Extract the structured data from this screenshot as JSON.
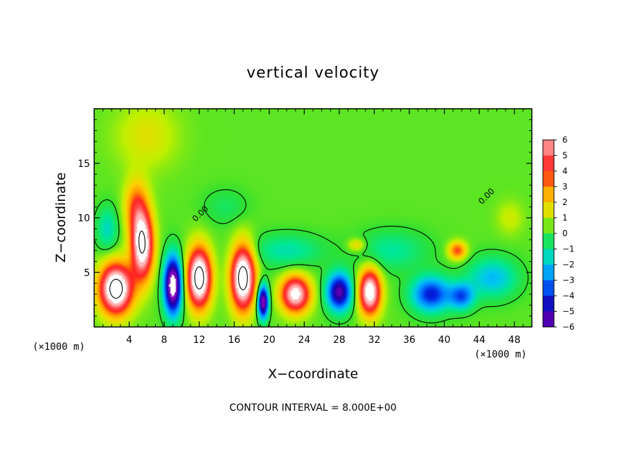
{
  "chart_data": {
    "type": "heatmap",
    "title": "vertical velocity",
    "xlabel": "X−coordinate",
    "ylabel": "Z−coordinate",
    "x_unit_left": "(×1000 m)",
    "x_unit_right": "(×1000 m)",
    "xlim": [
      0,
      50
    ],
    "ylim": [
      0,
      20
    ],
    "xticks": [
      4,
      8,
      12,
      16,
      20,
      24,
      28,
      32,
      36,
      40,
      44,
      48
    ],
    "yticks": [
      5,
      10,
      15
    ],
    "colorbar": {
      "levels": [
        6,
        5,
        4,
        3,
        2,
        1,
        0,
        -1,
        -2,
        -3,
        -4,
        -5,
        -6
      ],
      "labels": [
        "6",
        "5",
        "4",
        "3",
        "2",
        "1",
        "0",
        "−1",
        "−2",
        "−3",
        "−4",
        "−5",
        "−6"
      ]
    },
    "contour_labels": [
      {
        "text": "0.00",
        "x": 11.6,
        "y": 9.6,
        "angle": -45
      },
      {
        "text": "0.00",
        "x": 44.3,
        "y": 11.2,
        "angle": -45
      }
    ],
    "contour_interval_text": "CONTOUR INTERVAL = 8.000E+00",
    "features": [
      {
        "x": 2.5,
        "z": 3.5,
        "sx": 1.8,
        "sz": 2.2,
        "v": 9
      },
      {
        "x": 5.5,
        "z": 7.5,
        "sx": 1.2,
        "sz": 3.0,
        "v": 8
      },
      {
        "x": 4.8,
        "z": 11.0,
        "sx": 1.3,
        "sz": 2.5,
        "v": 3
      },
      {
        "x": 9.0,
        "z": 3.8,
        "sx": 1.0,
        "sz": 2.6,
        "v": -8
      },
      {
        "x": 12.0,
        "z": 4.5,
        "sx": 1.3,
        "sz": 2.6,
        "v": 9
      },
      {
        "x": 17.0,
        "z": 4.5,
        "sx": 1.3,
        "sz": 2.8,
        "v": 9
      },
      {
        "x": 19.3,
        "z": 2.3,
        "sx": 0.6,
        "sz": 1.5,
        "v": -7
      },
      {
        "x": 23.0,
        "z": 3.0,
        "sx": 1.6,
        "sz": 1.6,
        "v": 7
      },
      {
        "x": 28.0,
        "z": 3.2,
        "sx": 1.4,
        "sz": 1.7,
        "v": -6
      },
      {
        "x": 31.5,
        "z": 3.2,
        "sx": 1.2,
        "sz": 2.0,
        "v": 7.5
      },
      {
        "x": 38.5,
        "z": 3.0,
        "sx": 2.2,
        "sz": 1.6,
        "v": -4.5
      },
      {
        "x": 42.0,
        "z": 2.8,
        "sx": 1.4,
        "sz": 1.2,
        "v": -3.5
      },
      {
        "x": 41.5,
        "z": 7.0,
        "sx": 1.0,
        "sz": 0.8,
        "v": 3.5
      },
      {
        "x": 45.5,
        "z": 4.5,
        "sx": 2.8,
        "sz": 1.8,
        "v": -2.5
      },
      {
        "x": 30.0,
        "z": 7.5,
        "sx": 1.0,
        "sz": 0.6,
        "v": 1.8
      },
      {
        "x": 22.0,
        "z": 7.0,
        "sx": 4.0,
        "sz": 1.5,
        "v": -1.6
      },
      {
        "x": 34.0,
        "z": 7.0,
        "sx": 4.0,
        "sz": 1.8,
        "v": -1.4
      },
      {
        "x": 6.0,
        "z": 17.5,
        "sx": 3.5,
        "sz": 3.0,
        "v": 1.2
      },
      {
        "x": 15.0,
        "z": 11.0,
        "sx": 2.5,
        "sz": 1.6,
        "v": -0.8
      },
      {
        "x": 1.5,
        "z": 9.0,
        "sx": 1.2,
        "sz": 2.0,
        "v": -1.8
      },
      {
        "x": 47.5,
        "z": 10.0,
        "sx": 1.5,
        "sz": 1.5,
        "v": 0.9
      }
    ]
  }
}
